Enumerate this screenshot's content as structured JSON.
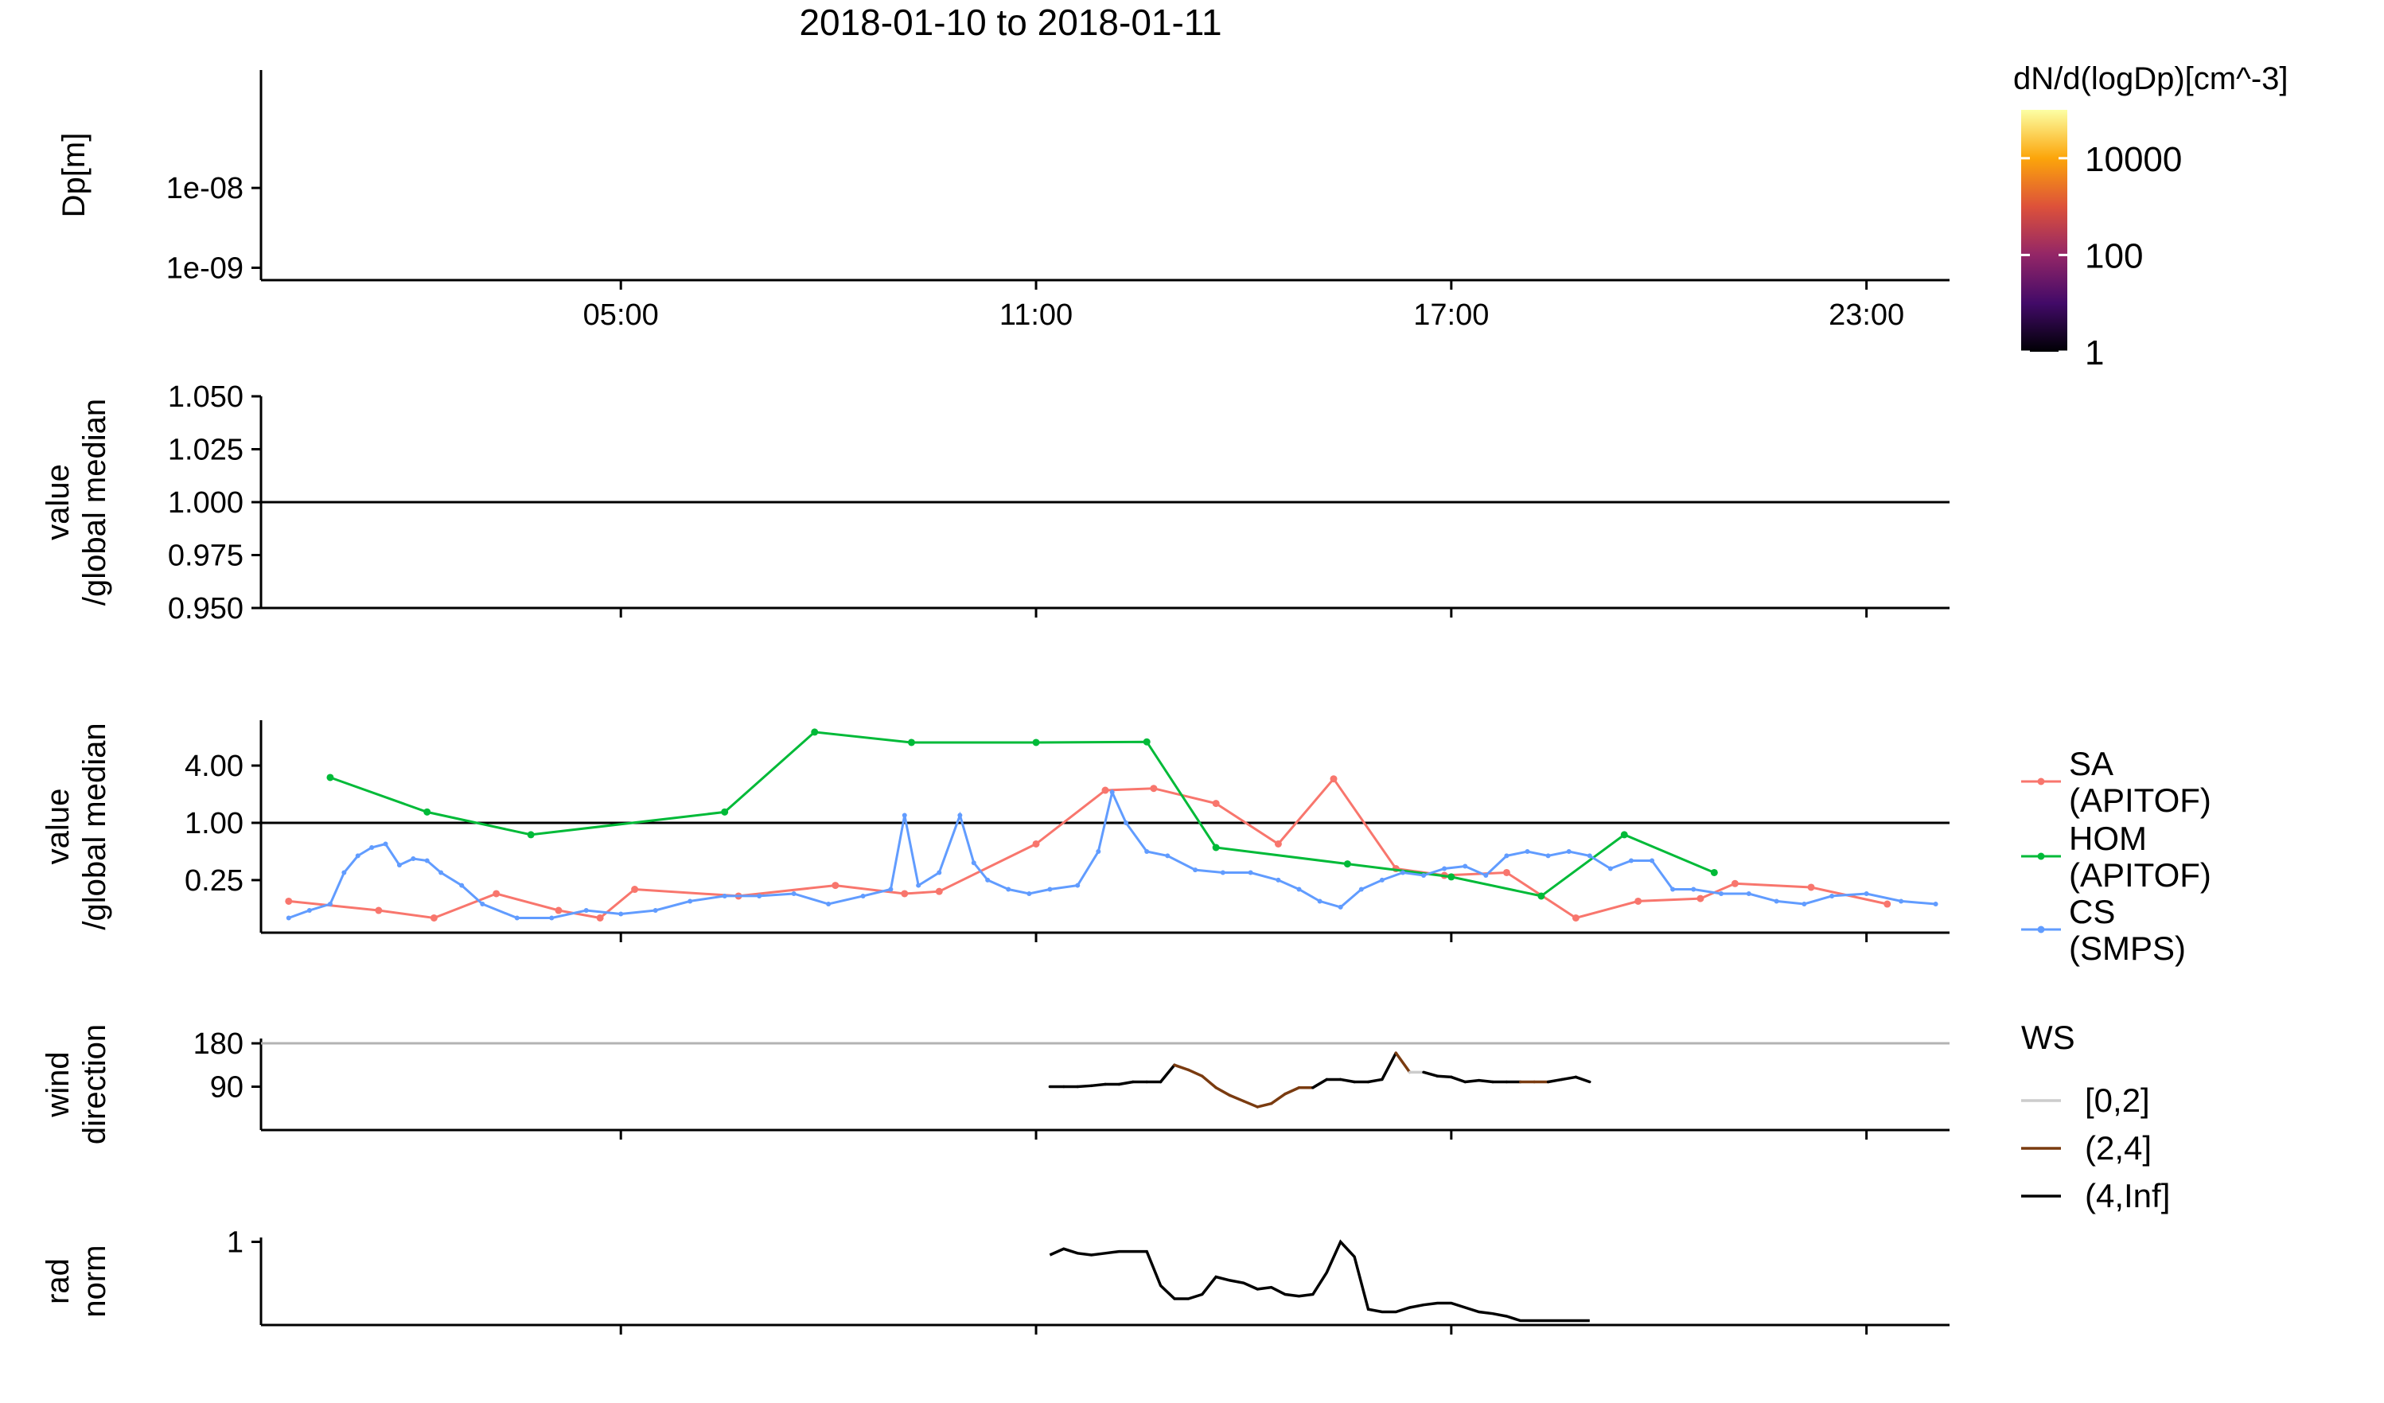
{
  "title": "2018-01-10  to  2018-01-11",
  "colors": {
    "sa": "#F8766D",
    "hom": "#00BA38",
    "cs": "#619CFF",
    "ws_0_2": "#cccccc",
    "ws_2_4": "#7a3b10",
    "ws_4_inf": "#000000",
    "wd_ref": "#b3b3b3"
  },
  "chart_data": [
    {
      "id": "size-distribution",
      "type": "heatmap",
      "ylabel": "Dp[m]",
      "y_scale": "log",
      "ylim": [
        7e-10,
        3e-07
      ],
      "yticks": [
        1e-09,
        1e-08
      ],
      "ytick_labels": [
        "1e-09",
        "1e-08"
      ],
      "xticks": [
        5,
        11,
        17,
        23
      ],
      "xtick_labels": [
        "05:00",
        "11:00",
        "17:00",
        "23:00"
      ],
      "xlim": [
        -0.2,
        24.2
      ],
      "colorbar": {
        "title": "dN/d(logDp)[cm^-3]",
        "scale": "log",
        "range": [
          1,
          100000
        ],
        "ticks": [
          1,
          100,
          10000
        ],
        "tick_labels": [
          "1",
          "100",
          "10000"
        ],
        "stops": [
          "#000004",
          "#420a68",
          "#932667",
          "#dd513a",
          "#fca50a",
          "#fcffa4"
        ]
      }
    },
    {
      "id": "empty-ratio",
      "type": "line",
      "ylabel": [
        "value",
        "/global median"
      ],
      "ylim": [
        0.95,
        1.05
      ],
      "yticks": [
        0.95,
        0.975,
        1.0,
        1.025,
        1.05
      ],
      "ytick_labels": [
        "0.950",
        "0.975",
        "1.000",
        "1.025",
        "1.050"
      ],
      "reference_line": 1.0
    },
    {
      "id": "ratio",
      "type": "line",
      "ylabel": [
        "value",
        "/global median"
      ],
      "y_scale": "log",
      "ylim": [
        0.07,
        12
      ],
      "yticks": [
        0.25,
        1.0,
        4.0
      ],
      "ytick_labels": [
        "0.25",
        "1.00",
        "4.00"
      ],
      "reference_line": 1.0,
      "legend_placement": "right",
      "series": [
        {
          "name": "SA\n(APITOF)",
          "name_lines": [
            "SA",
            "(APITOF)"
          ],
          "x": [
            0.2,
            1.5,
            2.3,
            3.2,
            4.1,
            4.7,
            5.2,
            6.7,
            8.1,
            9.1,
            9.6,
            11.0,
            12.0,
            12.7,
            13.6,
            14.5,
            15.3,
            16.2,
            16.9,
            17.8,
            18.8,
            19.7,
            20.6,
            21.1,
            22.2,
            23.3
          ],
          "y": [
            0.15,
            0.12,
            0.1,
            0.18,
            0.12,
            0.1,
            0.2,
            0.17,
            0.22,
            0.18,
            0.19,
            0.6,
            2.2,
            2.3,
            1.6,
            0.6,
            2.9,
            0.33,
            0.28,
            0.3,
            0.1,
            0.15,
            0.16,
            0.23,
            0.21,
            0.14
          ]
        },
        {
          "name": "HOM\n(APITOF)",
          "name_lines": [
            "HOM",
            "(APITOF)"
          ],
          "x": [
            0.8,
            2.2,
            3.7,
            6.5,
            7.8,
            9.2,
            11.0,
            12.6,
            13.6,
            15.5,
            17.0,
            18.3,
            19.5,
            20.8
          ],
          "y": [
            3.0,
            1.3,
            0.75,
            1.3,
            9.0,
            7.0,
            7.0,
            7.1,
            0.55,
            0.37,
            0.27,
            0.17,
            0.75,
            0.3
          ]
        },
        {
          "name": "CS\n(SMPS)",
          "name_lines": [
            "CS",
            "(SMPS)"
          ],
          "x": [
            0.2,
            0.5,
            0.8,
            1.0,
            1.2,
            1.4,
            1.6,
            1.8,
            2.0,
            2.2,
            2.4,
            2.7,
            3.0,
            3.5,
            4.0,
            4.5,
            5.0,
            5.5,
            6.0,
            6.5,
            7.0,
            7.5,
            8.0,
            8.5,
            8.9,
            9.1,
            9.3,
            9.6,
            9.9,
            10.1,
            10.3,
            10.6,
            10.9,
            11.2,
            11.6,
            11.9,
            12.1,
            12.3,
            12.6,
            12.9,
            13.3,
            13.7,
            14.1,
            14.5,
            14.8,
            15.1,
            15.4,
            15.7,
            16.0,
            16.3,
            16.6,
            16.9,
            17.2,
            17.5,
            17.8,
            18.1,
            18.4,
            18.7,
            19.0,
            19.3,
            19.6,
            19.9,
            20.2,
            20.5,
            20.9,
            21.3,
            21.7,
            22.1,
            22.5,
            23.0,
            23.5,
            24.0
          ],
          "y": [
            0.1,
            0.12,
            0.14,
            0.3,
            0.45,
            0.55,
            0.6,
            0.36,
            0.42,
            0.4,
            0.3,
            0.22,
            0.14,
            0.1,
            0.1,
            0.12,
            0.11,
            0.12,
            0.15,
            0.17,
            0.17,
            0.18,
            0.14,
            0.17,
            0.2,
            1.2,
            0.22,
            0.3,
            1.2,
            0.38,
            0.25,
            0.2,
            0.18,
            0.2,
            0.22,
            0.5,
            2.1,
            1.0,
            0.5,
            0.45,
            0.32,
            0.3,
            0.3,
            0.25,
            0.2,
            0.15,
            0.13,
            0.2,
            0.25,
            0.3,
            0.28,
            0.33,
            0.35,
            0.28,
            0.45,
            0.5,
            0.45,
            0.5,
            0.45,
            0.33,
            0.4,
            0.4,
            0.2,
            0.2,
            0.18,
            0.18,
            0.15,
            0.14,
            0.17,
            0.18,
            0.15,
            0.14
          ]
        }
      ]
    },
    {
      "id": "wind",
      "type": "line",
      "ylabel": [
        "wind",
        "direction"
      ],
      "ylim": [
        0,
        190
      ],
      "yticks": [
        90,
        180
      ],
      "ytick_labels": [
        "90",
        "180"
      ],
      "reference_line": 180,
      "legend": {
        "title": "WS",
        "entries": [
          "[0,2]",
          "(2,4]",
          "(4,Inf]"
        ]
      },
      "x": [
        11.2,
        11.4,
        11.6,
        11.8,
        12.0,
        12.2,
        12.4,
        12.6,
        12.8,
        13.0,
        13.2,
        13.4,
        13.6,
        13.8,
        14.0,
        14.2,
        14.4,
        14.6,
        14.8,
        15.0,
        15.2,
        15.4,
        15.6,
        15.8,
        16.0,
        16.2,
        16.4,
        16.6,
        16.8,
        17.0,
        17.2,
        17.4,
        17.6,
        17.8,
        18.0,
        18.2,
        18.4,
        18.6,
        18.8,
        19.0
      ],
      "y": [
        90,
        90,
        90,
        92,
        95,
        95,
        100,
        100,
        100,
        135,
        125,
        112,
        88,
        72,
        60,
        48,
        55,
        75,
        88,
        88,
        105,
        105,
        100,
        100,
        105,
        160,
        120,
        120,
        112,
        110,
        100,
        103,
        100,
        100,
        100,
        100,
        100,
        105,
        110,
        100
      ],
      "ws_class": [
        "(4,Inf]",
        "(4,Inf]",
        "(4,Inf]",
        "(4,Inf]",
        "(4,Inf]",
        "(4,Inf]",
        "(4,Inf]",
        "(4,Inf]",
        "(4,Inf]",
        "(2,4]",
        "(2,4]",
        "(2,4]",
        "(2,4]",
        "(2,4]",
        "(2,4]",
        "(2,4]",
        "(2,4]",
        "(2,4]",
        "(2,4]",
        "(4,Inf]",
        "(4,Inf]",
        "(4,Inf]",
        "(4,Inf]",
        "(4,Inf]",
        "(4,Inf]",
        "(2,4]",
        "[0,2]",
        "(4,Inf]",
        "(4,Inf]",
        "(4,Inf]",
        "(4,Inf]",
        "(4,Inf]",
        "(4,Inf]",
        "(4,Inf]",
        "(2,4]",
        "(2,4]",
        "(4,Inf]",
        "(4,Inf]",
        "(4,Inf]",
        "(4,Inf]"
      ]
    },
    {
      "id": "radiation",
      "type": "line",
      "ylabel": [
        "rad",
        "norm"
      ],
      "ylim": [
        0.05,
        1.05
      ],
      "yticks": [
        1
      ],
      "ytick_labels": [
        "1"
      ],
      "x": [
        11.2,
        11.4,
        11.6,
        11.8,
        12.0,
        12.2,
        12.4,
        12.6,
        12.8,
        13.0,
        13.2,
        13.4,
        13.6,
        13.8,
        14.0,
        14.2,
        14.4,
        14.6,
        14.8,
        15.0,
        15.2,
        15.4,
        15.6,
        15.8,
        16.0,
        16.2,
        16.4,
        16.6,
        16.8,
        17.0,
        17.2,
        17.4,
        17.6,
        17.8,
        18.0,
        18.2,
        18.4,
        18.6,
        18.8,
        19.0
      ],
      "y": [
        0.85,
        0.92,
        0.87,
        0.85,
        0.87,
        0.89,
        0.89,
        0.89,
        0.5,
        0.35,
        0.35,
        0.4,
        0.6,
        0.56,
        0.53,
        0.46,
        0.48,
        0.4,
        0.38,
        0.4,
        0.65,
        1.0,
        0.83,
        0.23,
        0.2,
        0.2,
        0.25,
        0.28,
        0.3,
        0.3,
        0.25,
        0.2,
        0.18,
        0.15,
        0.1,
        0.1,
        0.1,
        0.1,
        0.1,
        0.1
      ]
    }
  ]
}
